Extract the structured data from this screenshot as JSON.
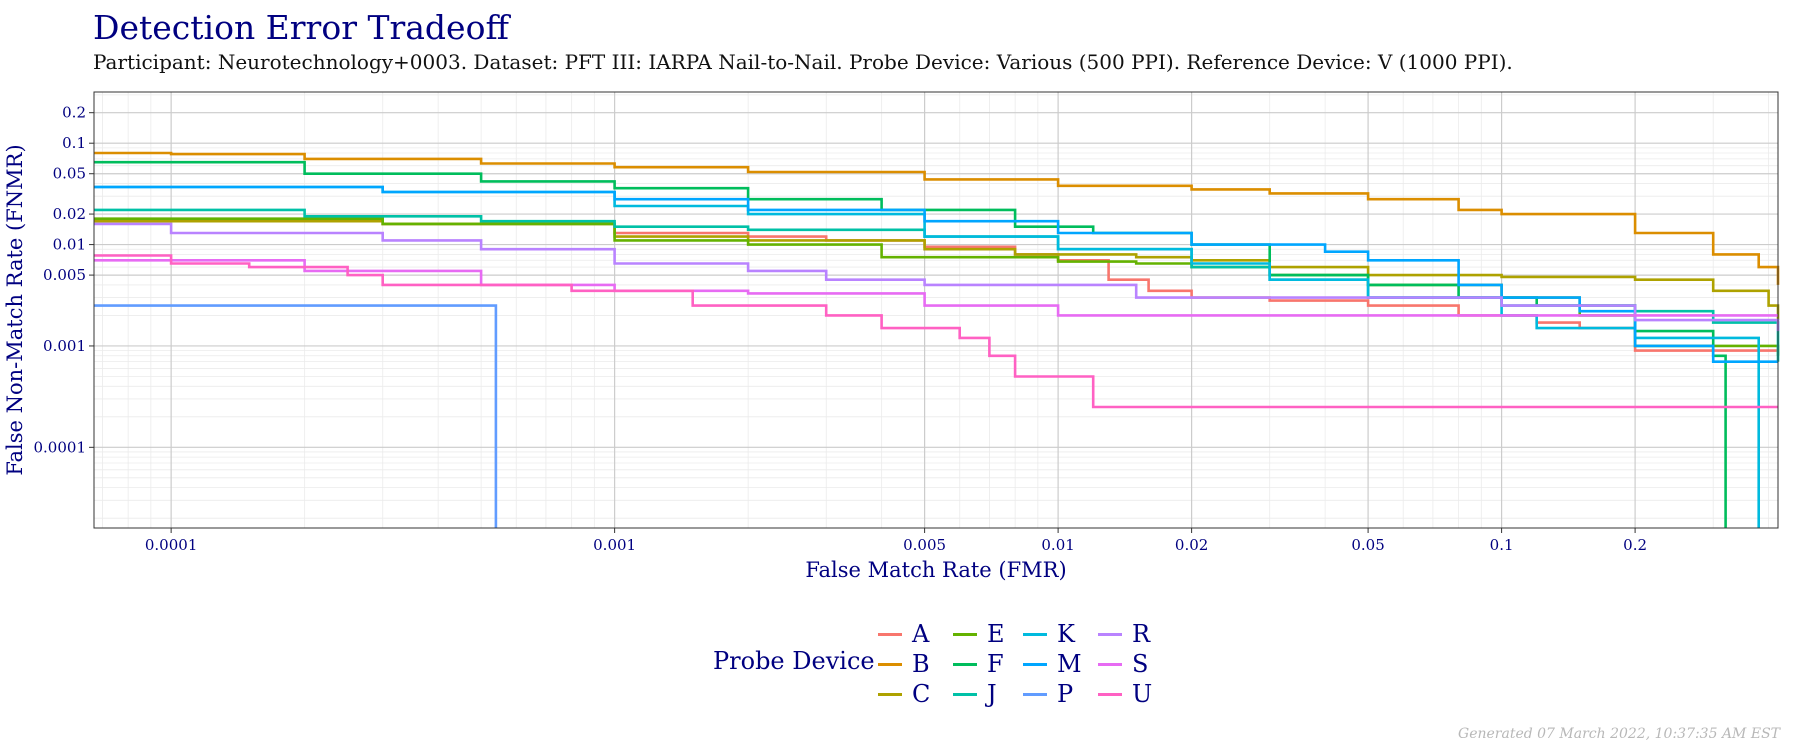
{
  "title": "Detection Error Tradeoff",
  "subtitle": "Participant: Neurotechnology+0003. Dataset: PFT III: IARPA Nail-to-Nail. Probe Device: Various (500 PPI). Reference Device: V (1000 PPI).",
  "footer": "Generated 07 March 2022, 10:37:35 AM EST",
  "legend": {
    "title": "Probe Device"
  },
  "chart_data": {
    "type": "line",
    "xlabel": "False Match Rate (FMR)",
    "ylabel": "False Non-Match Rate (FNMR)",
    "x_scale": "log",
    "y_scale": "log",
    "xlim": [
      6.7e-05,
      0.42
    ],
    "ylim": [
      1.6e-05,
      0.32
    ],
    "x_ticks": [
      {
        "value": 0.0001,
        "label": "0.0001"
      },
      {
        "value": 0.001,
        "label": "0.001"
      },
      {
        "value": 0.005,
        "label": "0.005"
      },
      {
        "value": 0.01,
        "label": "0.01"
      },
      {
        "value": 0.02,
        "label": "0.02"
      },
      {
        "value": 0.05,
        "label": "0.05"
      },
      {
        "value": 0.1,
        "label": "0.1"
      },
      {
        "value": 0.2,
        "label": "0.2"
      }
    ],
    "y_ticks": [
      {
        "value": 0.0001,
        "label": "0.0001"
      },
      {
        "value": 0.001,
        "label": "0.001"
      },
      {
        "value": 0.005,
        "label": "0.005"
      },
      {
        "value": 0.01,
        "label": "0.01"
      },
      {
        "value": 0.02,
        "label": "0.02"
      },
      {
        "value": 0.05,
        "label": "0.05"
      },
      {
        "value": 0.1,
        "label": "0.1"
      },
      {
        "value": 0.2,
        "label": "0.2"
      }
    ],
    "grid": true,
    "legend_position": "bottom",
    "series": [
      {
        "name": "A",
        "color": "#F8766D",
        "points": [
          [
            6.7e-05,
            0.017
          ],
          [
            0.0003,
            0.016
          ],
          [
            0.001,
            0.013
          ],
          [
            0.002,
            0.012
          ],
          [
            0.003,
            0.011
          ],
          [
            0.005,
            0.0095
          ],
          [
            0.008,
            0.008
          ],
          [
            0.01,
            0.007
          ],
          [
            0.013,
            0.0045
          ],
          [
            0.016,
            0.0035
          ],
          [
            0.02,
            0.003
          ],
          [
            0.03,
            0.0028
          ],
          [
            0.05,
            0.0025
          ],
          [
            0.08,
            0.002
          ],
          [
            0.12,
            0.0017
          ],
          [
            0.15,
            0.0015
          ],
          [
            0.2,
            0.0009
          ],
          [
            0.42,
            0.0009
          ]
        ]
      },
      {
        "name": "B",
        "color": "#DB8E00",
        "points": [
          [
            6.7e-05,
            0.08
          ],
          [
            0.0001,
            0.078
          ],
          [
            0.0002,
            0.07
          ],
          [
            0.0005,
            0.063
          ],
          [
            0.001,
            0.058
          ],
          [
            0.002,
            0.052
          ],
          [
            0.005,
            0.044
          ],
          [
            0.01,
            0.038
          ],
          [
            0.02,
            0.035
          ],
          [
            0.03,
            0.032
          ],
          [
            0.05,
            0.028
          ],
          [
            0.08,
            0.022
          ],
          [
            0.1,
            0.02
          ],
          [
            0.2,
            0.013
          ],
          [
            0.3,
            0.008
          ],
          [
            0.38,
            0.006
          ],
          [
            0.42,
            0.004
          ]
        ]
      },
      {
        "name": "C",
        "color": "#AEA200",
        "points": [
          [
            6.7e-05,
            0.017
          ],
          [
            0.0003,
            0.016
          ],
          [
            0.001,
            0.012
          ],
          [
            0.002,
            0.011
          ],
          [
            0.005,
            0.009
          ],
          [
            0.008,
            0.008
          ],
          [
            0.01,
            0.008
          ],
          [
            0.015,
            0.0075
          ],
          [
            0.02,
            0.007
          ],
          [
            0.03,
            0.006
          ],
          [
            0.05,
            0.005
          ],
          [
            0.1,
            0.0048
          ],
          [
            0.2,
            0.0045
          ],
          [
            0.3,
            0.0035
          ],
          [
            0.4,
            0.0025
          ],
          [
            0.42,
            0.0018
          ]
        ]
      },
      {
        "name": "E",
        "color": "#64B200",
        "points": [
          [
            6.7e-05,
            0.018
          ],
          [
            0.0003,
            0.016
          ],
          [
            0.001,
            0.011
          ],
          [
            0.002,
            0.01
          ],
          [
            0.004,
            0.0075
          ],
          [
            0.01,
            0.0068
          ],
          [
            0.015,
            0.0065
          ],
          [
            0.02,
            0.006
          ],
          [
            0.03,
            0.005
          ],
          [
            0.05,
            0.004
          ],
          [
            0.1,
            0.003
          ],
          [
            0.15,
            0.002
          ],
          [
            0.2,
            0.001
          ],
          [
            0.42,
            0.0008
          ]
        ]
      },
      {
        "name": "F",
        "color": "#00BD5C",
        "points": [
          [
            6.7e-05,
            0.065
          ],
          [
            0.0002,
            0.05
          ],
          [
            0.0005,
            0.042
          ],
          [
            0.001,
            0.036
          ],
          [
            0.002,
            0.028
          ],
          [
            0.004,
            0.022
          ],
          [
            0.008,
            0.015
          ],
          [
            0.012,
            0.013
          ],
          [
            0.02,
            0.01
          ],
          [
            0.03,
            0.005
          ],
          [
            0.05,
            0.004
          ],
          [
            0.08,
            0.003
          ],
          [
            0.12,
            0.0025
          ],
          [
            0.2,
            0.0014
          ],
          [
            0.3,
            0.0008
          ],
          [
            0.32,
            0.0008
          ],
          [
            0.32,
            1.6e-05
          ]
        ]
      },
      {
        "name": "J",
        "color": "#00C1A7",
        "points": [
          [
            6.7e-05,
            0.022
          ],
          [
            0.0002,
            0.019
          ],
          [
            0.0005,
            0.017
          ],
          [
            0.001,
            0.015
          ],
          [
            0.002,
            0.014
          ],
          [
            0.005,
            0.012
          ],
          [
            0.01,
            0.009
          ],
          [
            0.02,
            0.006
          ],
          [
            0.03,
            0.0045
          ],
          [
            0.05,
            0.003
          ],
          [
            0.1,
            0.0025
          ],
          [
            0.2,
            0.0022
          ],
          [
            0.3,
            0.0017
          ],
          [
            0.42,
            0.0007
          ]
        ]
      },
      {
        "name": "K",
        "color": "#00BADE",
        "points": [
          [
            6.7e-05,
            0.037
          ],
          [
            0.0003,
            0.033
          ],
          [
            0.001,
            0.024
          ],
          [
            0.002,
            0.02
          ],
          [
            0.005,
            0.012
          ],
          [
            0.01,
            0.009
          ],
          [
            0.02,
            0.0065
          ],
          [
            0.03,
            0.0045
          ],
          [
            0.05,
            0.003
          ],
          [
            0.1,
            0.002
          ],
          [
            0.12,
            0.0015
          ],
          [
            0.2,
            0.0012
          ],
          [
            0.3,
            0.0012
          ],
          [
            0.38,
            0.0012
          ],
          [
            0.38,
            1.6e-05
          ]
        ]
      },
      {
        "name": "M",
        "color": "#00A6FF",
        "points": [
          [
            6.7e-05,
            0.037
          ],
          [
            0.0003,
            0.033
          ],
          [
            0.001,
            0.028
          ],
          [
            0.002,
            0.022
          ],
          [
            0.005,
            0.017
          ],
          [
            0.01,
            0.013
          ],
          [
            0.02,
            0.01
          ],
          [
            0.04,
            0.0085
          ],
          [
            0.05,
            0.007
          ],
          [
            0.08,
            0.004
          ],
          [
            0.1,
            0.003
          ],
          [
            0.15,
            0.0022
          ],
          [
            0.2,
            0.001
          ],
          [
            0.3,
            0.0007
          ],
          [
            0.42,
            0.0007
          ]
        ]
      },
      {
        "name": "P",
        "color": "#619CFF",
        "points": [
          [
            6.7e-05,
            0.0025
          ],
          [
            0.00054,
            0.0025
          ],
          [
            0.00054,
            1.6e-05
          ]
        ]
      },
      {
        "name": "R",
        "color": "#B983FF",
        "points": [
          [
            6.7e-05,
            0.016
          ],
          [
            0.0001,
            0.013
          ],
          [
            0.0003,
            0.011
          ],
          [
            0.0005,
            0.009
          ],
          [
            0.001,
            0.0065
          ],
          [
            0.002,
            0.0055
          ],
          [
            0.003,
            0.0045
          ],
          [
            0.005,
            0.004
          ],
          [
            0.012,
            0.004
          ],
          [
            0.015,
            0.003
          ],
          [
            0.05,
            0.003
          ],
          [
            0.1,
            0.0025
          ],
          [
            0.2,
            0.0018
          ],
          [
            0.42,
            0.0014
          ]
        ]
      },
      {
        "name": "S",
        "color": "#E76BF3",
        "points": [
          [
            6.7e-05,
            0.007
          ],
          [
            0.0002,
            0.0055
          ],
          [
            0.0005,
            0.004
          ],
          [
            0.001,
            0.0035
          ],
          [
            0.002,
            0.0033
          ],
          [
            0.005,
            0.0025
          ],
          [
            0.01,
            0.002
          ],
          [
            0.05,
            0.002
          ],
          [
            0.1,
            0.002
          ],
          [
            0.42,
            0.002
          ]
        ]
      },
      {
        "name": "U",
        "color": "#FF61C3",
        "points": [
          [
            6.7e-05,
            0.0078
          ],
          [
            0.0001,
            0.0065
          ],
          [
            0.00015,
            0.006
          ],
          [
            0.00025,
            0.005
          ],
          [
            0.0003,
            0.004
          ],
          [
            0.0008,
            0.0035
          ],
          [
            0.0015,
            0.0025
          ],
          [
            0.003,
            0.002
          ],
          [
            0.004,
            0.0015
          ],
          [
            0.006,
            0.0012
          ],
          [
            0.007,
            0.0008
          ],
          [
            0.008,
            0.0005
          ],
          [
            0.012,
            0.0005
          ],
          [
            0.012,
            0.00025
          ],
          [
            0.42,
            0.00025
          ]
        ]
      }
    ]
  }
}
